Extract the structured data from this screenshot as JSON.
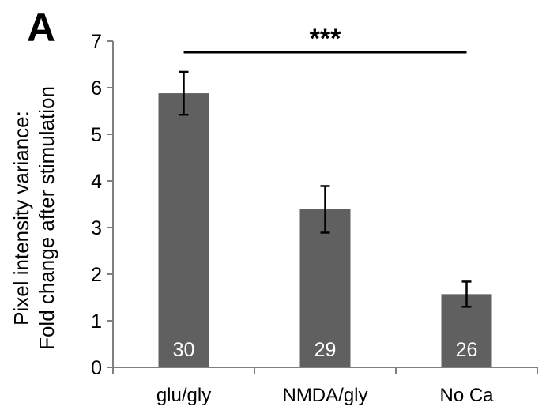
{
  "panel_label": "A",
  "chart_data": {
    "type": "bar",
    "categories": [
      "glu/gly",
      "NMDA/gly",
      "No Ca"
    ],
    "values": [
      5.88,
      3.39,
      1.57
    ],
    "errors": [
      0.46,
      0.5,
      0.27
    ],
    "n_labels": [
      "30",
      "29",
      "26"
    ],
    "ylabel_lines": [
      "Pixel intensity variance:",
      "Fold change after stimulation"
    ],
    "xlabel": "",
    "ylim": [
      0,
      7
    ],
    "yticks": [
      "0",
      "1",
      "2",
      "3",
      "4",
      "5",
      "6",
      "7"
    ],
    "grid": false,
    "significance": {
      "text": "***",
      "from": "glu/gly",
      "to": "No Ca"
    },
    "bar_color": "#606060"
  }
}
